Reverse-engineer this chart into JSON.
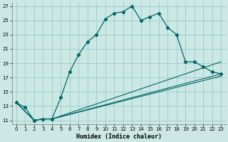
{
  "xlabel": "Humidex (Indice chaleur)",
  "background_color": "#cce8e4",
  "grid_color": "#99cccc",
  "line_color": "#006666",
  "xlim": [
    -0.5,
    23.5
  ],
  "ylim": [
    10.5,
    27.5
  ],
  "xticks": [
    0,
    1,
    2,
    3,
    4,
    5,
    6,
    7,
    8,
    9,
    10,
    11,
    12,
    13,
    14,
    15,
    16,
    17,
    18,
    19,
    20,
    21,
    22,
    23
  ],
  "yticks": [
    11,
    13,
    15,
    17,
    19,
    21,
    23,
    25,
    27
  ],
  "main_x": [
    0,
    1,
    2,
    3,
    4,
    5,
    6,
    7,
    8,
    9,
    10,
    11,
    12,
    13,
    14,
    15,
    16,
    17,
    18,
    19,
    20,
    21,
    22,
    23
  ],
  "main_y": [
    13.5,
    12.8,
    11.0,
    11.2,
    11.2,
    14.2,
    17.8,
    20.2,
    22.0,
    23.0,
    25.2,
    26.0,
    26.2,
    27.0,
    25.0,
    25.5,
    26.0,
    24.0,
    23.0,
    19.2,
    19.2,
    18.5,
    17.8,
    17.5
  ],
  "line1_x": [
    0,
    2,
    3,
    4,
    23
  ],
  "line1_y": [
    13.5,
    11.0,
    11.2,
    11.2,
    17.5
  ],
  "line2_x": [
    0,
    2,
    3,
    4,
    23
  ],
  "line2_y": [
    13.5,
    11.0,
    11.2,
    11.2,
    17.2
  ],
  "line3_x": [
    0,
    2,
    3,
    4,
    23
  ],
  "line3_y": [
    13.5,
    11.0,
    11.2,
    11.2,
    19.2
  ]
}
